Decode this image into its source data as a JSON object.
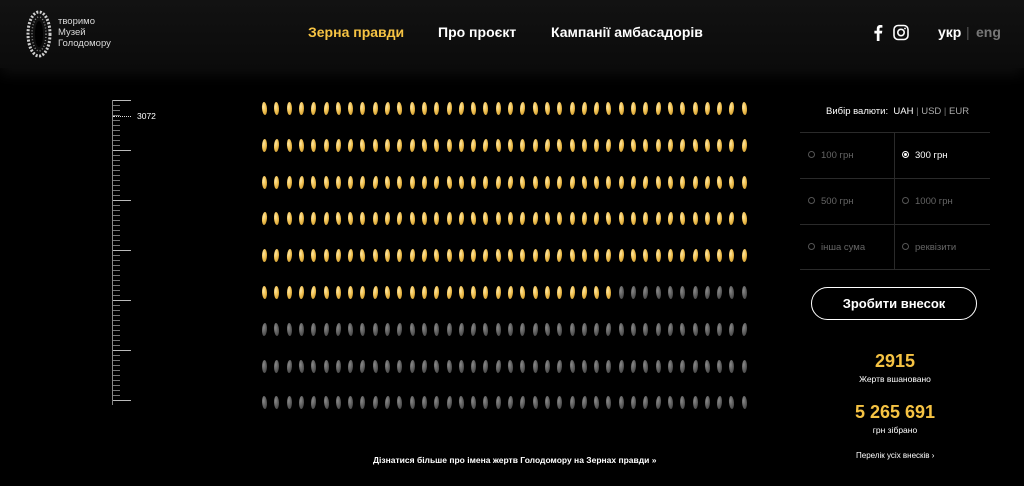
{
  "header": {
    "logo_lines": [
      "творимо",
      "Музей",
      "Голодомору"
    ],
    "nav": [
      {
        "label": "Зерна правди",
        "active": true
      },
      {
        "label": "Про проєкт",
        "active": false
      },
      {
        "label": "Кампанії амбасадорів",
        "active": false
      }
    ],
    "social": [
      "facebook-icon",
      "instagram-icon"
    ],
    "lang": {
      "current": "укр",
      "separator": "|",
      "other": "eng"
    }
  },
  "scale": {
    "label": "3072"
  },
  "grains": {
    "rows": 9,
    "per_row": 40,
    "gold_full_rows": 5,
    "gold_in_partial_row": 29,
    "gold_color": "#f0c050",
    "grey_color": "#5c5c5c"
  },
  "bottom_link": "Дізнатися більше про імена жертв Голодомору на Зернах правди »",
  "donation": {
    "currency_label": "Вибір валюти:",
    "currencies": [
      "UAH",
      "USD",
      "EUR"
    ],
    "selected_currency": "UAH",
    "amounts": [
      {
        "label": "100 грн",
        "checked": false
      },
      {
        "label": "300 грн",
        "checked": true
      },
      {
        "label": "500 грн",
        "checked": false
      },
      {
        "label": "1000 грн",
        "checked": false
      },
      {
        "label": "інша сума",
        "checked": false
      },
      {
        "label": "реквізити",
        "checked": false
      }
    ],
    "cta": "Зробити внесок"
  },
  "stats": {
    "victims_count": "2915",
    "victims_label": "Жертв вшановано",
    "money": "5 265 691",
    "money_label": "грн зібрано",
    "list_link": "Перелік усіх внесків ›"
  },
  "colors": {
    "accent": "#f6c343",
    "background": "#000000"
  }
}
